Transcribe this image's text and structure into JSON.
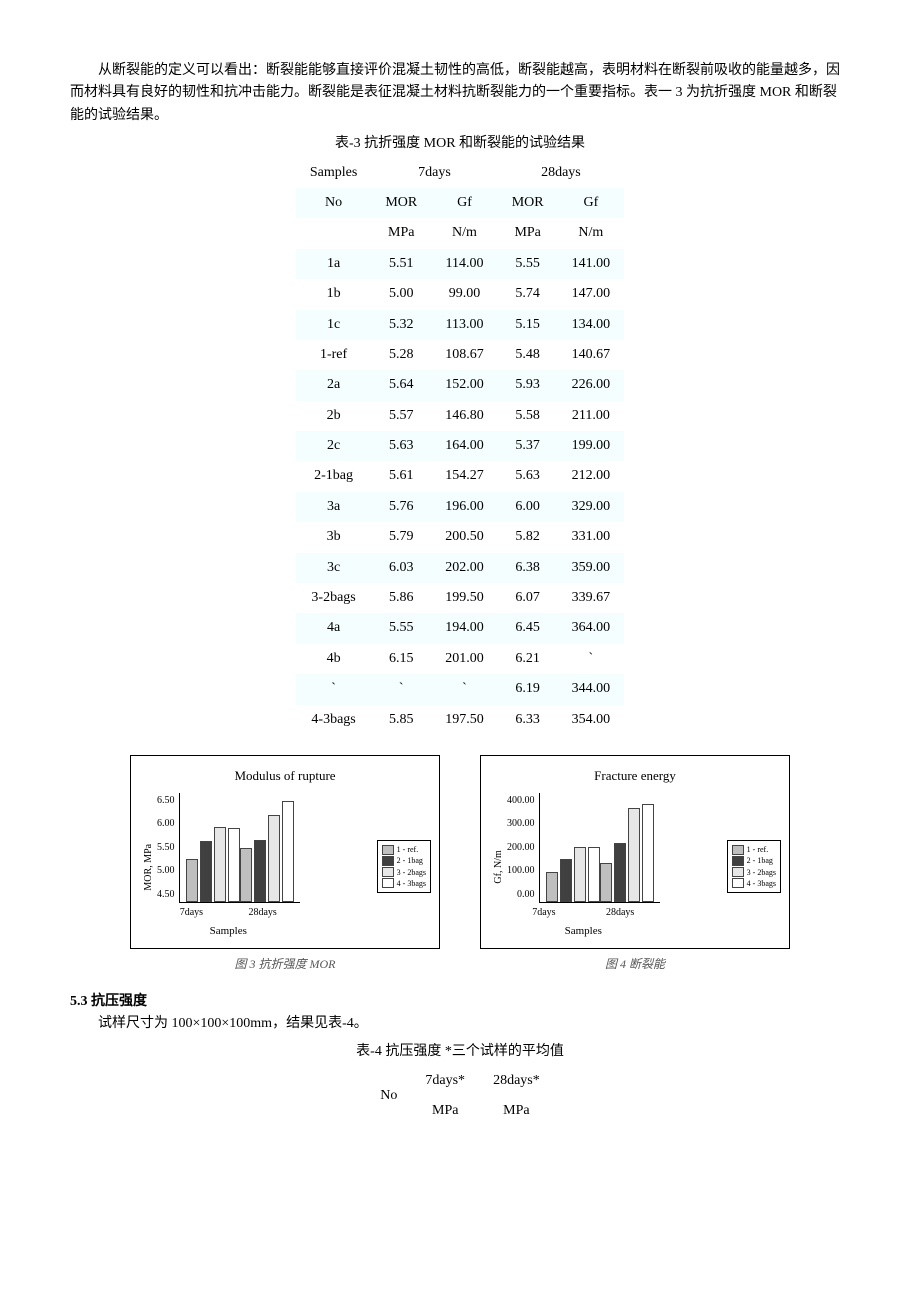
{
  "text": {
    "intro": "从断裂能的定义可以看出：断裂能能够直接评价混凝土韧性的高低，断裂能越高，表明材料在断裂前吸收的能量越多，因而材料具有良好的韧性和抗冲击能力。断裂能是表征混凝土材料抗断裂能力的一个重要指标。表一 3 为抗折强度 MOR 和断裂能的试验结果。",
    "table3_caption": "表-3 抗折强度 MOR 和断裂能的试验结果",
    "section53": "5.3 抗压强度",
    "spec": "试样尺寸为 100×100×100mm，结果见表-4。",
    "table4_caption": "表-4 抗压强度  *三个试样的平均值"
  },
  "table3": {
    "head": {
      "samples": "Samples",
      "no": "No",
      "d7": "7days",
      "d28": "28days",
      "mor": "MOR",
      "gf": "Gf",
      "mpa": "MPa",
      "nm": "N/m"
    },
    "rows": [
      {
        "id": "1a",
        "mor7": "5.51",
        "gf7": "114.00",
        "mor28": "5.55",
        "gf28": "141.00"
      },
      {
        "id": "1b",
        "mor7": "5.00",
        "gf7": "99.00",
        "mor28": "5.74",
        "gf28": "147.00"
      },
      {
        "id": "1c",
        "mor7": "5.32",
        "gf7": "113.00",
        "mor28": "5.15",
        "gf28": "134.00"
      },
      {
        "id": "1-ref",
        "mor7": "5.28",
        "gf7": "108.67",
        "mor28": "5.48",
        "gf28": "140.67"
      },
      {
        "id": "2a",
        "mor7": "5.64",
        "gf7": "152.00",
        "mor28": "5.93",
        "gf28": "226.00"
      },
      {
        "id": "2b",
        "mor7": "5.57",
        "gf7": "146.80",
        "mor28": "5.58",
        "gf28": "211.00"
      },
      {
        "id": "2c",
        "mor7": "5.63",
        "gf7": "164.00",
        "mor28": "5.37",
        "gf28": "199.00"
      },
      {
        "id": "2-1bag",
        "mor7": "5.61",
        "gf7": "154.27",
        "mor28": "5.63",
        "gf28": "212.00"
      },
      {
        "id": "3a",
        "mor7": "5.76",
        "gf7": "196.00",
        "mor28": "6.00",
        "gf28": "329.00"
      },
      {
        "id": "3b",
        "mor7": "5.79",
        "gf7": "200.50",
        "mor28": "5.82",
        "gf28": "331.00"
      },
      {
        "id": "3c",
        "mor7": "6.03",
        "gf7": "202.00",
        "mor28": "6.38",
        "gf28": "359.00"
      },
      {
        "id": "3-2bags",
        "mor7": "5.86",
        "gf7": "199.50",
        "mor28": "6.07",
        "gf28": "339.67"
      },
      {
        "id": "4a",
        "mor7": "5.55",
        "gf7": "194.00",
        "mor28": "6.45",
        "gf28": "364.00"
      },
      {
        "id": "4b",
        "mor7": "6.15",
        "gf7": "201.00",
        "mor28": "6.21",
        "gf28": "`"
      },
      {
        "id": "`",
        "mor7": "`",
        "gf7": "`",
        "mor28": "6.19",
        "gf28": "344.00"
      },
      {
        "id": "4-3bags",
        "mor7": "5.85",
        "gf7": "197.50",
        "mor28": "6.33",
        "gf28": "354.00"
      }
    ]
  },
  "chart_mor": {
    "type": "bar",
    "title": "Modulus of rupture",
    "ylabel": "MOR, MPa",
    "xlabel": "Samples",
    "categories": [
      "7days",
      "28days"
    ],
    "series": [
      "1 - ref.",
      "2 - 1bag",
      "3 - 2bags",
      "4 - 3bags"
    ],
    "values_7": [
      5.28,
      5.61,
      5.86,
      5.85
    ],
    "values_28": [
      5.48,
      5.63,
      6.07,
      6.33
    ],
    "ymin": 4.5,
    "ymax": 6.5,
    "yticks": [
      "6.50",
      "6.00",
      "5.50",
      "5.00",
      "4.50"
    ],
    "colors": [
      "#bfbfbf",
      "#404040",
      "#e6e6e6",
      "#ffffff"
    ],
    "caption": "图 3 抗折强度 MOR"
  },
  "chart_gf": {
    "type": "bar",
    "title": "Fracture energy",
    "ylabel": "Gf, N/m",
    "xlabel": "Samples",
    "categories": [
      "7days",
      "28days"
    ],
    "series": [
      "1 - ref.",
      "2 - 1bag",
      "3 - 2bags",
      "4 - 3bags"
    ],
    "values_7": [
      108.67,
      154.27,
      199.5,
      197.5
    ],
    "values_28": [
      140.67,
      212.0,
      339.67,
      354.0
    ],
    "ymin": 0,
    "ymax": 400,
    "yticks": [
      "400.00",
      "300.00",
      "200.00",
      "100.00",
      "0.00"
    ],
    "colors": [
      "#bfbfbf",
      "#404040",
      "#e6e6e6",
      "#ffffff"
    ],
    "caption": "图 4 断裂能"
  },
  "table4": {
    "head": {
      "no": "No",
      "d7": "7days*",
      "d28": "28days*",
      "mpa": "MPa"
    }
  }
}
